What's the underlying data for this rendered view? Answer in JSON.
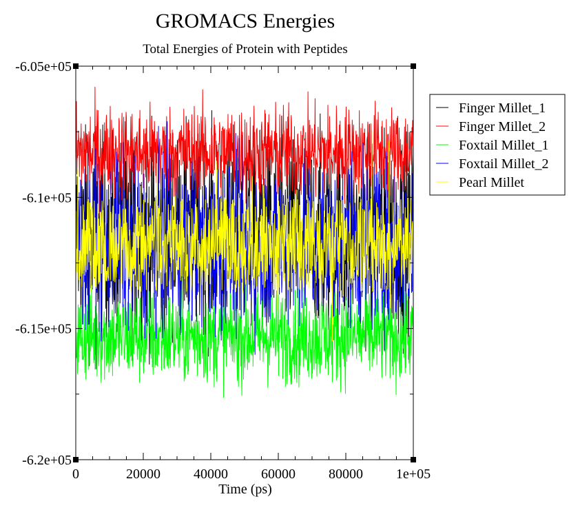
{
  "chart_data": {
    "type": "line",
    "title": "GROMACS Energies",
    "subtitle": "Total Energies of Protein with Peptides",
    "xlabel": "Time (ps)",
    "ylabel": "",
    "xlim": [
      0,
      100000
    ],
    "ylim": [
      -620000,
      -605000
    ],
    "x_ticks": [
      0,
      20000,
      40000,
      60000,
      80000,
      100000
    ],
    "x_tick_labels": [
      "0",
      "20000",
      "40000",
      "60000",
      "80000",
      "1e+05"
    ],
    "y_ticks": [
      -605000,
      -610000,
      -615000,
      -620000
    ],
    "y_tick_labels": [
      "-6.05e+05",
      "-6.1e+05",
      "-6.15e+05",
      "-6.2e+05"
    ],
    "grid": false,
    "legend_position": "right",
    "note": "Each series is a dense noisy time trace; values summarized by mean and spread (energy units)",
    "series": [
      {
        "name": "Finger Millet_1",
        "color": "#000000",
        "mean": -611500,
        "spread": 1900
      },
      {
        "name": "Finger Millet_2",
        "color": "#ff0000",
        "mean": -608300,
        "spread": 900
      },
      {
        "name": "Foxtail Millet_1",
        "color": "#00ff00",
        "mean": -615300,
        "spread": 900
      },
      {
        "name": "Foxtail Millet_2",
        "color": "#0000ff",
        "mean": -611800,
        "spread": 1600
      },
      {
        "name": "Pearl Millet",
        "color": "#ffff00",
        "mean": -611800,
        "spread": 950
      }
    ]
  }
}
